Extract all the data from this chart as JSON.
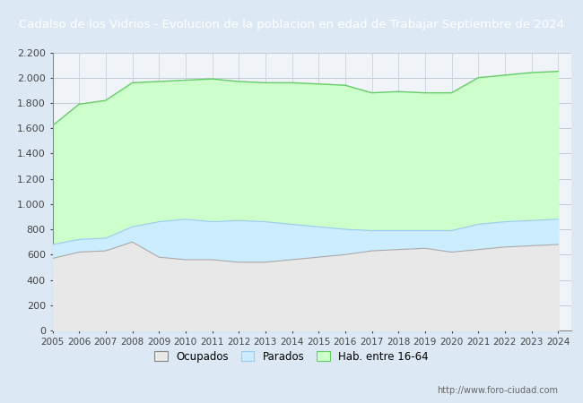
{
  "title": "Cadalso de los Vidrios - Evolucion de la poblacion en edad de Trabajar Septiembre de 2024",
  "title_bg": "#4a9fc8",
  "title_color": "white",
  "xlabel": "",
  "ylabel": "",
  "ylim": [
    0,
    2200
  ],
  "yticks": [
    0,
    200,
    400,
    600,
    800,
    1000,
    1200,
    1400,
    1600,
    1800,
    2000,
    2200
  ],
  "ytick_labels": [
    "0",
    "200",
    "400",
    "600",
    "800",
    "1.000",
    "1.200",
    "1.400",
    "1.600",
    "1.800",
    "2.000",
    "2.200"
  ],
  "years": [
    2005,
    2006,
    2007,
    2008,
    2009,
    2010,
    2011,
    2012,
    2013,
    2014,
    2015,
    2016,
    2017,
    2018,
    2019,
    2020,
    2021,
    2022,
    2023,
    2024
  ],
  "hab_16_64": [
    1620,
    1790,
    1820,
    1960,
    1970,
    1980,
    1990,
    1970,
    1960,
    1960,
    1950,
    1940,
    1880,
    1890,
    1880,
    1880,
    2000,
    2020,
    2040,
    2050
  ],
  "parados": [
    680,
    720,
    730,
    820,
    860,
    880,
    860,
    870,
    860,
    840,
    820,
    800,
    790,
    790,
    790,
    790,
    840,
    860,
    870,
    880
  ],
  "ocupados": [
    570,
    620,
    630,
    700,
    580,
    560,
    560,
    540,
    540,
    560,
    580,
    600,
    630,
    640,
    650,
    620,
    640,
    660,
    670,
    680
  ],
  "color_hab": "#ccffcc",
  "color_hab_line": "#66cc66",
  "color_parados": "#ccecff",
  "color_parados_line": "#99ccee",
  "color_ocupados": "#e8e8e8",
  "color_ocupados_line": "#aaaaaa",
  "legend_labels": [
    "Ocupados",
    "Parados",
    "Hab. entre 16-64"
  ],
  "watermark": "http://www.foro-ciudad.com",
  "bg_color": "#dce9f5",
  "plot_bg": "#f0f4f8",
  "grid_color": "#c0ccd8"
}
